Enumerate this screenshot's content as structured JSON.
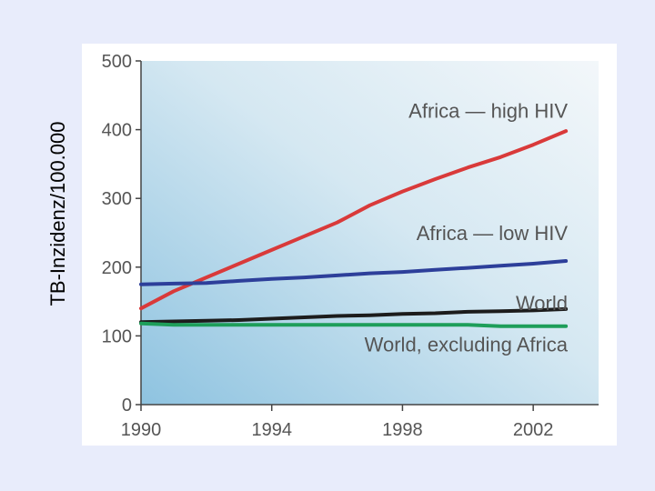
{
  "chart_data": {
    "type": "line",
    "title": "",
    "xlabel": "",
    "ylabel": "TB-Inzidenz/100.000",
    "xlim": [
      1990,
      2004
    ],
    "ylim": [
      0,
      500
    ],
    "x_ticks": [
      1990,
      1994,
      1998,
      2002
    ],
    "y_ticks": [
      0,
      100,
      200,
      300,
      400,
      500
    ],
    "grid": false,
    "series": [
      {
        "name": "Africa — high HIV",
        "color": "#d93a3a",
        "x": [
          1990,
          1991,
          1992,
          1993,
          1994,
          1995,
          1996,
          1997,
          1998,
          1999,
          2000,
          2001,
          2002,
          2003
        ],
        "y": [
          140,
          165,
          185,
          205,
          225,
          245,
          265,
          290,
          310,
          328,
          345,
          360,
          378,
          398
        ]
      },
      {
        "name": "Africa — low HIV",
        "color": "#2d3f9a",
        "x": [
          1990,
          1991,
          1992,
          1993,
          1994,
          1995,
          1996,
          1997,
          1998,
          1999,
          2000,
          2001,
          2002,
          2003
        ],
        "y": [
          175,
          176,
          177,
          180,
          183,
          185,
          188,
          191,
          193,
          196,
          199,
          202,
          205,
          209
        ]
      },
      {
        "name": "World",
        "color": "#1c1c1c",
        "x": [
          1990,
          1991,
          1992,
          1993,
          1994,
          1995,
          1996,
          1997,
          1998,
          1999,
          2000,
          2001,
          2002,
          2003
        ],
        "y": [
          120,
          121,
          122,
          123,
          125,
          127,
          129,
          130,
          132,
          133,
          135,
          136,
          137,
          139
        ]
      },
      {
        "name": "World, excluding Africa",
        "color": "#1e9e5a",
        "x": [
          1990,
          1991,
          1992,
          1993,
          1994,
          1995,
          1996,
          1997,
          1998,
          1999,
          2000,
          2001,
          2002,
          2003
        ],
        "y": [
          118,
          116,
          116,
          116,
          116,
          116,
          116,
          116,
          116,
          116,
          116,
          114,
          114,
          114
        ]
      }
    ]
  }
}
